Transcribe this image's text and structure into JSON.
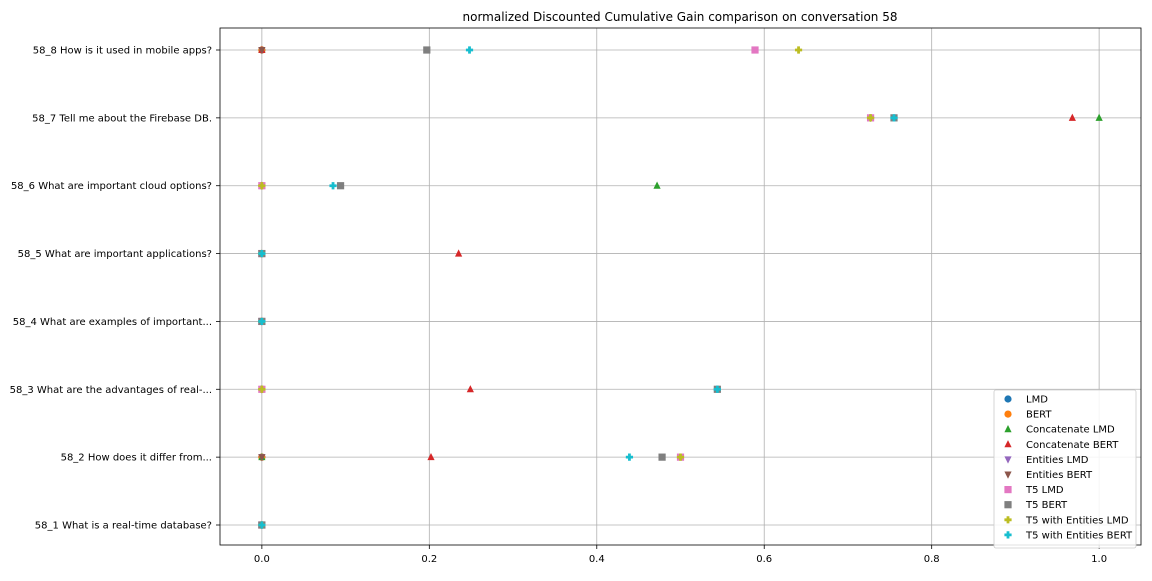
{
  "chart_data": {
    "type": "scatter",
    "title": "normalized Discounted Cumulative Gain comparison on conversation 58",
    "xlabel": "",
    "ylabel": "",
    "xlim": [
      -0.05,
      1.05
    ],
    "x_ticks": [
      0.0,
      0.2,
      0.4,
      0.6,
      0.8,
      1.0
    ],
    "x_tick_labels": [
      "0.0",
      "0.2",
      "0.4",
      "0.6",
      "0.8",
      "1.0"
    ],
    "grid": true,
    "legend_position": "lower-right",
    "categories": [
      "58_1 What is a real-time database?",
      "58_2 How does it differ from...",
      "58_3 What are the advantages of real-...",
      "58_4 What are examples of important...",
      "58_5 What are important applications?",
      "58_6 What are important cloud options?",
      "58_7 Tell me about the Firebase DB.",
      "58_8 How is it used in mobile apps?"
    ],
    "series": [
      {
        "name": "LMD",
        "marker": "circle",
        "color": "#1f77b4",
        "values": [
          0,
          0,
          0,
          0,
          0,
          0,
          0.727,
          0
        ]
      },
      {
        "name": "BERT",
        "marker": "circle",
        "color": "#ff7f0e",
        "values": [
          0,
          0,
          0,
          0,
          0,
          0,
          0.727,
          0
        ]
      },
      {
        "name": "Concatenate LMD",
        "marker": "triangle-up",
        "color": "#2ca02c",
        "values": [
          0,
          0,
          0,
          0,
          0,
          0.472,
          1.0,
          0
        ]
      },
      {
        "name": "Concatenate BERT",
        "marker": "triangle-up",
        "color": "#d62728",
        "values": [
          0,
          0.202,
          0.249,
          0,
          0.235,
          0,
          0.968,
          0
        ]
      },
      {
        "name": "Entities LMD",
        "marker": "triangle-down",
        "color": "#9467bd",
        "values": [
          0,
          0,
          0,
          0,
          0,
          0,
          0.727,
          0
        ]
      },
      {
        "name": "Entities BERT",
        "marker": "triangle-down",
        "color": "#8c564b",
        "values": [
          0,
          0,
          0,
          0,
          0,
          0,
          0.727,
          0
        ]
      },
      {
        "name": "T5 LMD",
        "marker": "square",
        "color": "#e377c2",
        "values": [
          0,
          0.5,
          0,
          0,
          0,
          0,
          0.727,
          0.589
        ]
      },
      {
        "name": "T5 BERT",
        "marker": "square",
        "color": "#7f7f7f",
        "values": [
          0,
          0.478,
          0.544,
          0,
          0,
          0.094,
          0.755,
          0.197
        ]
      },
      {
        "name": "T5 with Entities LMD",
        "marker": "plus",
        "color": "#bcbd22",
        "values": [
          0,
          0.5,
          0,
          0,
          0,
          0,
          0.727,
          0.641
        ]
      },
      {
        "name": "T5 with Entities BERT",
        "marker": "plus",
        "color": "#17becf",
        "values": [
          0,
          0.439,
          0.544,
          0,
          0,
          0.085,
          0.755,
          0.248
        ]
      }
    ]
  }
}
